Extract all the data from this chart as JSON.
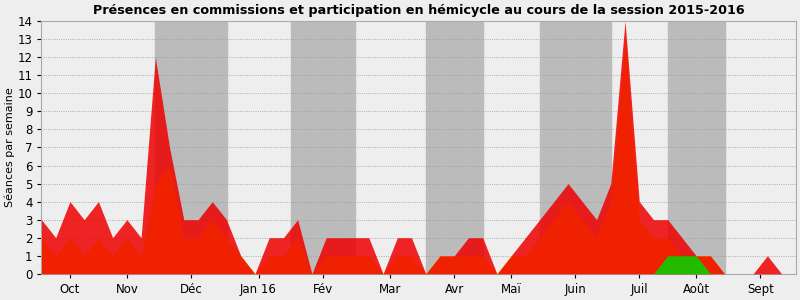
{
  "title": "Présences en commissions et participation en hémicycle au cours de la session 2015-2016",
  "ylabel": "Séances par semaine",
  "xlabel_ticks": [
    "Oct",
    "Nov",
    "Déc",
    "Jan 16",
    "Fév",
    "Mar",
    "Avr",
    "Maï",
    "Juin",
    "Juil",
    "Août",
    "Sept"
  ],
  "ylim": [
    0,
    14
  ],
  "yticks": [
    0,
    1,
    2,
    3,
    4,
    5,
    6,
    7,
    8,
    9,
    10,
    11,
    12,
    13,
    14
  ],
  "background_color": "#eeeeee",
  "shade_color": "#bbbbbb",
  "color_red": "#ee0000",
  "color_yellow": "#ffdd00",
  "color_green": "#22bb00",
  "n_weeks": 53,
  "red_data": [
    3,
    2,
    4,
    3,
    4,
    2,
    3,
    2,
    12,
    7,
    3,
    3,
    4,
    3,
    1,
    0,
    2,
    2,
    3,
    0,
    2,
    2,
    2,
    2,
    0,
    2,
    2,
    0,
    1,
    1,
    2,
    2,
    0,
    1,
    2,
    3,
    4,
    5,
    4,
    3,
    5,
    14,
    4,
    3,
    3,
    2,
    1,
    1,
    0,
    0,
    0,
    1,
    0
  ],
  "yellow_data": [
    2,
    1,
    2,
    1,
    2,
    1,
    2,
    1,
    5,
    6,
    2,
    2,
    3,
    2,
    1,
    0,
    1,
    1,
    2,
    0,
    1,
    1,
    1,
    1,
    0,
    1,
    1,
    0,
    1,
    1,
    1,
    1,
    0,
    1,
    1,
    2,
    3,
    4,
    3,
    2,
    4,
    13,
    3,
    2,
    2,
    1,
    1,
    1,
    0,
    0,
    0,
    0,
    0
  ],
  "green_data": [
    0,
    0,
    0,
    0,
    0,
    0,
    0,
    0,
    0,
    0,
    0,
    0,
    0,
    0,
    0,
    0,
    0,
    0,
    0,
    0,
    0,
    0,
    0,
    0,
    0,
    0,
    0,
    0,
    0,
    0,
    0,
    0,
    0,
    0,
    0,
    0,
    0,
    0,
    0,
    0,
    0,
    0,
    0,
    0,
    1,
    1,
    1,
    0,
    0,
    0,
    0,
    0,
    0
  ],
  "shaded_months_idx": [
    2,
    4,
    6,
    8,
    10
  ],
  "month_boundaries": [
    0,
    4,
    8,
    13,
    17.5,
    22,
    27,
    31,
    35,
    40,
    44,
    48,
    53
  ]
}
